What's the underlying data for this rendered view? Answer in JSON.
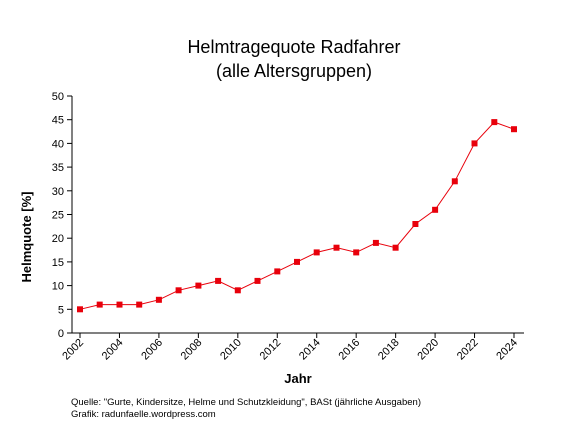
{
  "chart_data": {
    "type": "line",
    "title_lines": [
      "Helmtragequote Radfahrer",
      "(alle Altersgruppen)"
    ],
    "xlabel": "Jahr",
    "ylabel": "Helmquote [%]",
    "ylim": [
      0,
      50
    ],
    "y_ticks": [
      0,
      5,
      10,
      15,
      20,
      25,
      30,
      35,
      40,
      45,
      50
    ],
    "x_ticks": [
      2002,
      2004,
      2006,
      2008,
      2010,
      2012,
      2014,
      2016,
      2018,
      2020,
      2022,
      2024
    ],
    "xlim": [
      2002,
      2024
    ],
    "x": [
      2002,
      2003,
      2004,
      2005,
      2006,
      2007,
      2008,
      2009,
      2010,
      2011,
      2012,
      2013,
      2014,
      2015,
      2016,
      2017,
      2018,
      2019,
      2020,
      2021,
      2022,
      2023,
      2024
    ],
    "series": [
      {
        "values": [
          5,
          6,
          6,
          6,
          7,
          9,
          10,
          11,
          9,
          11,
          13,
          15,
          17,
          18,
          17,
          19,
          18,
          23,
          26,
          32,
          40,
          44.5,
          43
        ],
        "color": "#e8000b"
      }
    ],
    "grid": false,
    "legend": "none"
  },
  "notes": {
    "source": "Quelle: \"Gurte, Kindersitze, Helme und Schutzkleidung\", BASt (jährliche Ausgaben)",
    "credit": "Grafik: radunfaelle.wordpress.com"
  }
}
